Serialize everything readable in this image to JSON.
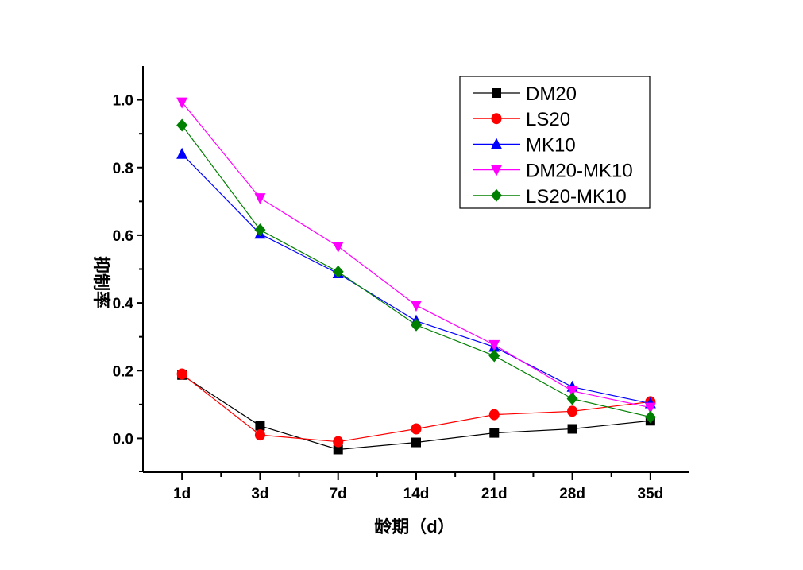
{
  "chart_data": {
    "type": "line",
    "title": "",
    "xlabel": "龄期（d）",
    "ylabel": "抑制率",
    "categories": [
      "1d",
      "3d",
      "7d",
      "14d",
      "21d",
      "28d",
      "35d"
    ],
    "ylim": [
      -0.1,
      1.1
    ],
    "yticks": [
      "0.0",
      "0.2",
      "0.4",
      "0.6",
      "0.8",
      "1.0"
    ],
    "ytick_values": [
      0,
      0.2,
      0.4,
      0.6,
      0.8,
      1.0
    ],
    "grid": false,
    "legend_position": "top-right",
    "series": [
      {
        "name": "DM20",
        "color": "#000000",
        "marker": "square",
        "values": [
          0.187,
          0.037,
          -0.033,
          -0.012,
          0.016,
          0.028,
          0.052
        ]
      },
      {
        "name": "LS20",
        "color": "#ff0000",
        "marker": "circle",
        "values": [
          0.19,
          0.01,
          -0.01,
          0.028,
          0.07,
          0.08,
          0.108
        ]
      },
      {
        "name": "MK10",
        "color": "#0000ff",
        "marker": "triangle-up",
        "values": [
          0.84,
          0.604,
          0.487,
          0.347,
          0.27,
          0.152,
          0.103
        ]
      },
      {
        "name": "DM20-MK10",
        "color": "#ff00ff",
        "marker": "triangle-down",
        "values": [
          0.993,
          0.71,
          0.567,
          0.393,
          0.276,
          0.14,
          0.091
        ]
      },
      {
        "name": "LS20-MK10",
        "color": "#008000",
        "marker": "diamond",
        "values": [
          0.925,
          0.616,
          0.492,
          0.335,
          0.244,
          0.117,
          0.063
        ]
      }
    ]
  }
}
